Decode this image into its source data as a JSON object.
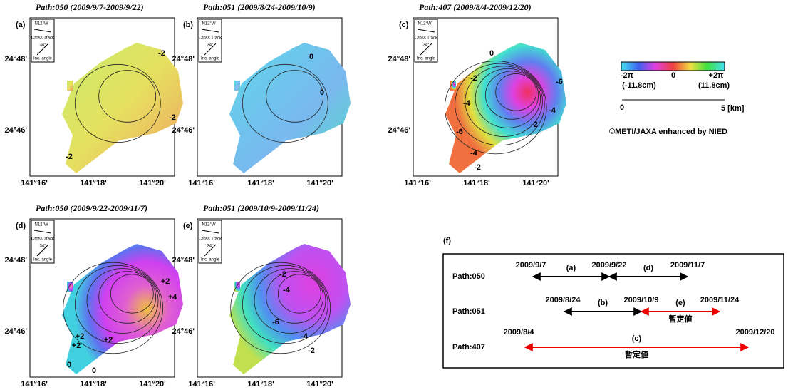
{
  "panels": [
    {
      "label": "(a)",
      "title": "Path:050 (2009/9/7-2009/9/22)",
      "contour_labels": [
        "-2",
        "-2",
        "-2"
      ]
    },
    {
      "label": "(b)",
      "title": "Path:051 (2009/8/24-2009/10/9)",
      "contour_labels": [
        "0",
        "0"
      ]
    },
    {
      "label": "(c)",
      "title": "Path:407 (2009/8/4-2009/12/20)",
      "contour_labels": [
        "0",
        "-2",
        "-4",
        "-6",
        "-2",
        "-4",
        "-6",
        "-4",
        "-2"
      ]
    },
    {
      "label": "(d)",
      "title": "Path:050 (2009/9/22-2009/11/7)",
      "contour_labels": [
        "+2",
        "+4",
        "+2",
        "+2",
        "+2",
        "0",
        "0"
      ]
    },
    {
      "label": "(e)",
      "title": "Path:051 (2009/10/9-2009/11/24)",
      "contour_labels": [
        "-2",
        "-4",
        "-6",
        "-4",
        "-2"
      ]
    }
  ],
  "axes": {
    "y_labels": [
      "24°48'",
      "24°46'"
    ],
    "x_labels": [
      "141°16'",
      "141°18'",
      "141°20'"
    ]
  },
  "inset": {
    "heading": "N12°W",
    "cross": "Cross Track",
    "angle": "34°",
    "incidence": "Inc. angle"
  },
  "colorbar": {
    "labels": [
      "-2π",
      "0",
      "+2π"
    ],
    "sublabels": [
      "(-11.8cm)",
      "(11.8cm)"
    ]
  },
  "scalebar": {
    "labels": [
      "0",
      "5 [km]"
    ]
  },
  "credit": "©METI/JAXA enhanced by NIED",
  "timeline": {
    "label": "(f)",
    "rows": [
      {
        "path": "Path:050",
        "dates": [
          "2009/9/7",
          "2009/9/22",
          "2009/11/7"
        ],
        "spans": [
          {
            "label": "(a)"
          },
          {
            "label": "(d)"
          }
        ]
      },
      {
        "path": "Path:051",
        "dates": [
          "2009/8/24",
          "2009/10/9",
          "2009/11/24"
        ],
        "spans": [
          {
            "label": "(b)"
          },
          {
            "label": "(e)",
            "note": "暫定値"
          }
        ]
      },
      {
        "path": "Path:407",
        "dates": [
          "2009/8/4",
          "2009/12/20"
        ],
        "spans": [
          {
            "label": "(c)",
            "note": "暫定値"
          }
        ]
      }
    ]
  }
}
